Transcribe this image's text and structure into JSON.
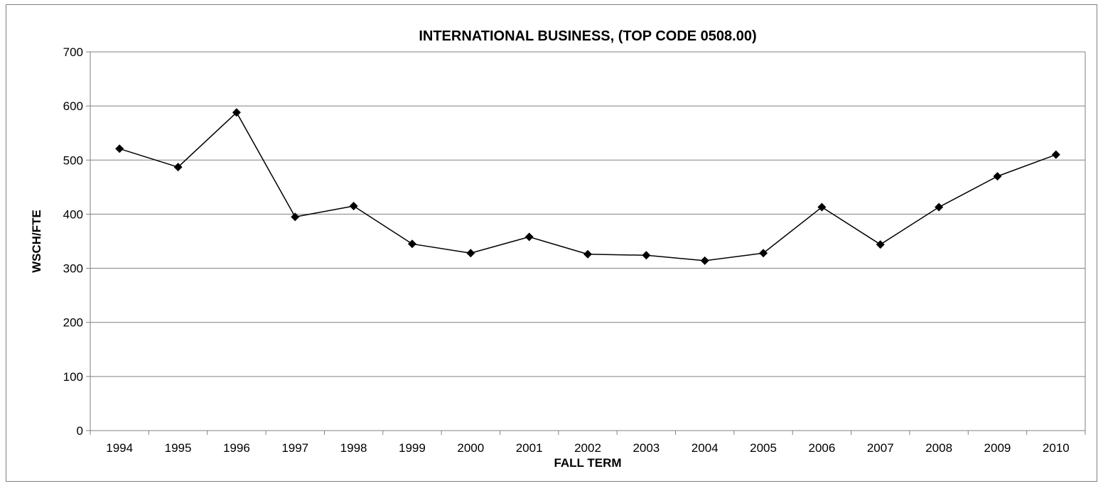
{
  "chart_data": {
    "type": "line",
    "title": "INTERNATIONAL BUSINESS, (TOP CODE 0508.00)",
    "xlabel": "FALL TERM",
    "ylabel": "WSCH/FTE",
    "categories": [
      "1994",
      "1995",
      "1996",
      "1997",
      "1998",
      "1999",
      "2000",
      "2001",
      "2002",
      "2003",
      "2004",
      "2005",
      "2006",
      "2007",
      "2008",
      "2009",
      "2010"
    ],
    "series": [
      {
        "values": [
          521,
          487,
          588,
          395,
          415,
          345,
          328,
          358,
          326,
          324,
          314,
          328,
          413,
          344,
          413,
          470,
          510
        ],
        "color": "#000000",
        "marker": "diamond"
      }
    ],
    "ylim": [
      0,
      700
    ],
    "yticks": [
      0,
      100,
      200,
      300,
      400,
      500,
      600,
      700
    ],
    "grid": "horizontal",
    "legend": "none"
  }
}
